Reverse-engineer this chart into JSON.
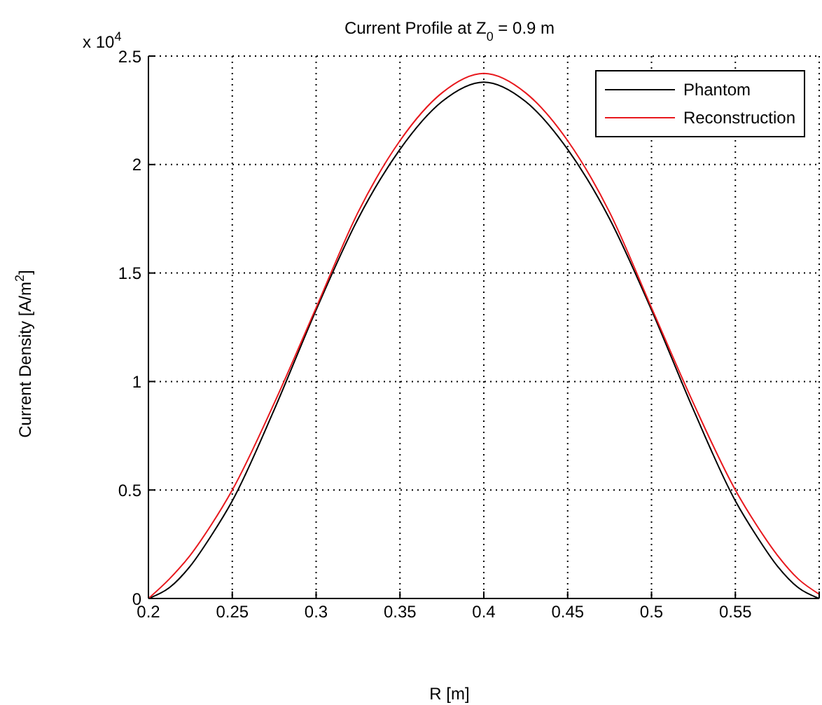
{
  "chart_data": {
    "type": "line",
    "title": "Current Profile at Z$_{0}$ = 0.9 m",
    "xlabel": "R [m]",
    "ylabel": "Current Density [A/m$^{2}$]",
    "annotations": [
      "x 10$^{4}$"
    ],
    "xlim": [
      0.2,
      0.6
    ],
    "xticks": [
      0.2,
      0.25,
      0.3,
      0.35,
      0.4,
      0.45,
      0.5,
      0.55,
      {
        "value": 0.6,
        "label": null
      }
    ],
    "ylim": [
      0,
      2.5
    ],
    "yticks": [
      0,
      0.5,
      1,
      1.5,
      2,
      2.5
    ],
    "grid": true,
    "legend": "top right",
    "line_style": "solid",
    "marker": "none",
    "x": [
      0.2,
      0.2125,
      0.225,
      0.2375,
      0.25,
      0.275,
      0.3,
      0.325,
      0.35,
      0.375,
      0.4,
      0.425,
      0.45,
      0.475,
      0.5,
      0.525,
      0.55,
      0.5625,
      0.575,
      0.5875,
      0.6
    ],
    "series": [
      {
        "name": "Phantom",
        "color": "#000000",
        "values": [
          0,
          0.05,
          0.15,
          0.29,
          0.45,
          0.87,
          1.33,
          1.75,
          2.07,
          2.29,
          2.38,
          2.29,
          2.07,
          1.75,
          1.33,
          0.87,
          0.45,
          0.29,
          0.15,
          0.05,
          0
        ]
      },
      {
        "name": "Reconstruction",
        "color": "#e8191e",
        "values": [
          0,
          0.09,
          0.2,
          0.34,
          0.5,
          0.9,
          1.34,
          1.78,
          2.11,
          2.33,
          2.42,
          2.33,
          2.11,
          1.78,
          1.34,
          0.9,
          0.5,
          0.34,
          0.2,
          0.09,
          0.02
        ]
      }
    ]
  }
}
